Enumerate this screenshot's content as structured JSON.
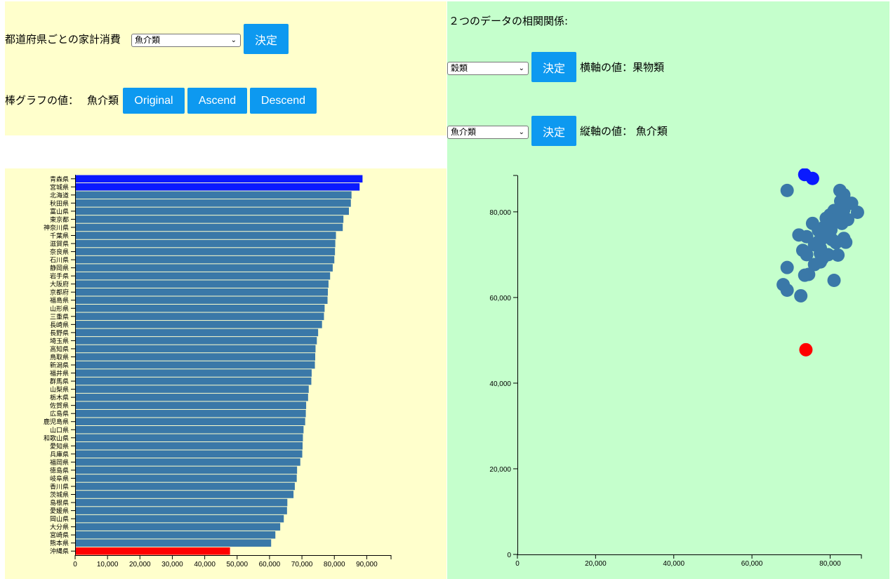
{
  "left_controls": {
    "title": "都道府県ごとの家計消費",
    "select_value": "魚介類",
    "decide_label": "決定",
    "bar_value_label": "棒グラフの値：",
    "bar_value": "魚介類",
    "original_label": "Original",
    "ascend_label": "Ascend",
    "descend_label": "Descend"
  },
  "right_controls": {
    "title": "２つのデータの相関関係:",
    "x_select_value": "穀類",
    "x_decide_label": "決定",
    "x_axis_label": "横軸の値：果物類",
    "y_select_value": "魚介類",
    "y_decide_label": "決定",
    "y_axis_label": "縦軸の値： 魚介類"
  },
  "colors": {
    "bar": "#3a78a8",
    "top": "#0a1aff",
    "bottom": "#ff0000",
    "left_bg": "#ffffcc",
    "right_bg": "#c5ffcc",
    "button": "#0d99f0"
  },
  "chart_data": [
    {
      "type": "bar",
      "orientation": "horizontal",
      "xlim": [
        0,
        97500
      ],
      "x_ticks": [
        "0",
        "10,000",
        "20,000",
        "30,000",
        "40,000",
        "50,000",
        "60,000",
        "70,000",
        "80,000",
        "90,000"
      ],
      "categories": [
        "青森県",
        "宮城県",
        "北海道",
        "秋田県",
        "富山県",
        "東京都",
        "神奈川県",
        "千葉県",
        "滋賀県",
        "奈良県",
        "石川県",
        "静岡県",
        "岩手県",
        "大阪府",
        "京都府",
        "福島県",
        "山形県",
        "三重県",
        "長崎県",
        "長野県",
        "埼玉県",
        "高知県",
        "鳥取県",
        "新潟県",
        "福井県",
        "群馬県",
        "山梨県",
        "栃木県",
        "佐賀県",
        "広島県",
        "鹿児島県",
        "山口県",
        "和歌山県",
        "愛知県",
        "兵庫県",
        "福岡県",
        "徳島県",
        "岐阜県",
        "香川県",
        "茨城県",
        "島根県",
        "愛媛県",
        "岡山県",
        "大分県",
        "宮崎県",
        "熊本県",
        "沖縄県"
      ],
      "values": [
        88700,
        87800,
        85300,
        85100,
        84500,
        82800,
        82600,
        80500,
        80300,
        80200,
        80000,
        79500,
        78700,
        78200,
        78000,
        77900,
        77000,
        76800,
        76200,
        75000,
        74600,
        74200,
        74100,
        74000,
        73000,
        72900,
        72100,
        71900,
        71300,
        71200,
        71000,
        70500,
        70300,
        70200,
        70100,
        69500,
        68500,
        68400,
        67800,
        67400,
        65500,
        65400,
        64400,
        63300,
        61800,
        60500,
        47800
      ],
      "highlight_top": [
        "青森県",
        "宮城県"
      ],
      "highlight_bottom": [
        "沖縄県"
      ]
    },
    {
      "type": "scatter",
      "xlim": [
        0,
        88000
      ],
      "ylim": [
        0,
        88500
      ],
      "x_ticks": [
        "0",
        "20,000",
        "40,000",
        "60,000",
        "80,000"
      ],
      "y_ticks": [
        "0",
        "20,000",
        "40,000",
        "60,000",
        "80,000"
      ],
      "points": [
        {
          "x": 73500,
          "y": 88700,
          "c": "top"
        },
        {
          "x": 75500,
          "y": 87800,
          "c": "top"
        },
        {
          "x": 69000,
          "y": 85000
        },
        {
          "x": 82500,
          "y": 85000
        },
        {
          "x": 83500,
          "y": 84000
        },
        {
          "x": 82700,
          "y": 82500
        },
        {
          "x": 85500,
          "y": 82000
        },
        {
          "x": 81000,
          "y": 80300
        },
        {
          "x": 83500,
          "y": 80500
        },
        {
          "x": 87000,
          "y": 79900
        },
        {
          "x": 80000,
          "y": 79300
        },
        {
          "x": 83300,
          "y": 79300
        },
        {
          "x": 79000,
          "y": 78500
        },
        {
          "x": 81300,
          "y": 78200
        },
        {
          "x": 84500,
          "y": 78200
        },
        {
          "x": 75500,
          "y": 77300
        },
        {
          "x": 80000,
          "y": 77000
        },
        {
          "x": 83000,
          "y": 77300
        },
        {
          "x": 78500,
          "y": 76500
        },
        {
          "x": 77000,
          "y": 75700
        },
        {
          "x": 80200,
          "y": 75800
        },
        {
          "x": 72000,
          "y": 74600
        },
        {
          "x": 74000,
          "y": 74200
        },
        {
          "x": 78000,
          "y": 73800
        },
        {
          "x": 77000,
          "y": 73000
        },
        {
          "x": 83500,
          "y": 73800
        },
        {
          "x": 81500,
          "y": 72800
        },
        {
          "x": 84000,
          "y": 72900
        },
        {
          "x": 76000,
          "y": 72300
        },
        {
          "x": 73000,
          "y": 71000
        },
        {
          "x": 77500,
          "y": 70300
        },
        {
          "x": 74000,
          "y": 70000
        },
        {
          "x": 79500,
          "y": 70000
        },
        {
          "x": 82000,
          "y": 69900
        },
        {
          "x": 78000,
          "y": 69100
        },
        {
          "x": 77500,
          "y": 68300
        },
        {
          "x": 76000,
          "y": 67700
        },
        {
          "x": 69000,
          "y": 67000
        },
        {
          "x": 74500,
          "y": 65400
        },
        {
          "x": 73500,
          "y": 65200
        },
        {
          "x": 81000,
          "y": 64000
        },
        {
          "x": 68000,
          "y": 63000
        },
        {
          "x": 69000,
          "y": 61700
        },
        {
          "x": 72500,
          "y": 60400
        },
        {
          "x": 77500,
          "y": 71500
        },
        {
          "x": 80500,
          "y": 73500
        },
        {
          "x": 73800,
          "y": 47800,
          "c": "bottom"
        }
      ]
    }
  ]
}
